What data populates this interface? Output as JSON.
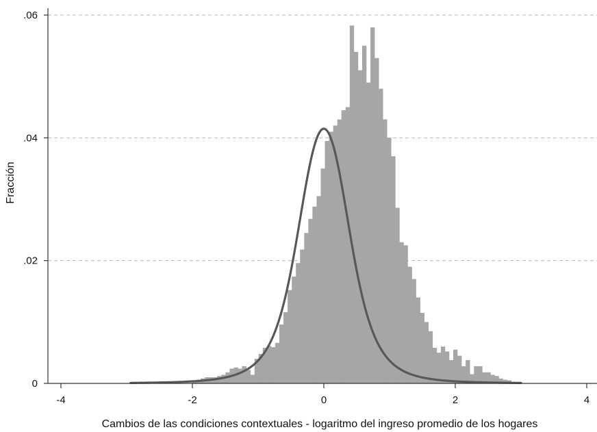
{
  "chart_data": {
    "type": "bar",
    "title": "",
    "xlabel": "Cambios de las condiciones contextuales - logaritmo del ingreso promedio de los hogares",
    "ylabel": "Fracción",
    "xlim": [
      -4.0,
      4.0
    ],
    "ylim": [
      0,
      0.06
    ],
    "x_ticks": [
      {
        "value": -4,
        "label": "-4"
      },
      {
        "value": -2,
        "label": "-2"
      },
      {
        "value": 0,
        "label": "0"
      },
      {
        "value": 2,
        "label": "2"
      },
      {
        "value": 4,
        "label": "4"
      }
    ],
    "y_ticks": [
      {
        "value": 0,
        "label": "0"
      },
      {
        "value": 0.02,
        "label": ".02"
      },
      {
        "value": 0.04,
        "label": ".04"
      },
      {
        "value": 0.06,
        "label": ".06"
      }
    ],
    "grid": "horizontal dashed at y ticks",
    "colors": {
      "bars": "#a6a6a8",
      "curve": "#58585a",
      "axis": "#333333",
      "grid": "#bbbbbb"
    },
    "histogram": {
      "bin_width": 0.063,
      "x_start": -2.0,
      "fractions": [
        0.0003,
        0.0006,
        0.0008,
        0.001,
        0.001,
        0.001,
        0.0012,
        0.0014,
        0.0018,
        0.0024,
        0.0026,
        0.0024,
        0.0028,
        0.0022,
        0.0014,
        0.004,
        0.0048,
        0.0058,
        0.0061,
        0.0059,
        0.0066,
        0.0096,
        0.0116,
        0.0152,
        0.0174,
        0.0196,
        0.0218,
        0.0245,
        0.0268,
        0.0288,
        0.0305,
        0.035,
        0.0395,
        0.041,
        0.042,
        0.043,
        0.0445,
        0.045,
        0.0583,
        0.054,
        0.051,
        0.055,
        0.049,
        0.058,
        0.053,
        0.048,
        0.043,
        0.04,
        0.037,
        0.0286,
        0.023,
        0.0225,
        0.019,
        0.017,
        0.014,
        0.0115,
        0.01,
        0.0085,
        0.0058,
        0.005,
        0.006,
        0.0052,
        0.0038,
        0.0055,
        0.0045,
        0.0028,
        0.0038,
        0.0015,
        0.0028,
        0.0028,
        0.0018,
        0.0018,
        0.0014,
        0.0012,
        0.0008,
        0.0006,
        0.0005
      ]
    },
    "density_curve": {
      "name": "",
      "x_range": [
        -2.94,
        3.0
      ],
      "peak_x": 0.0,
      "peak_fraction": 0.0415,
      "scale": 0.52
    }
  }
}
